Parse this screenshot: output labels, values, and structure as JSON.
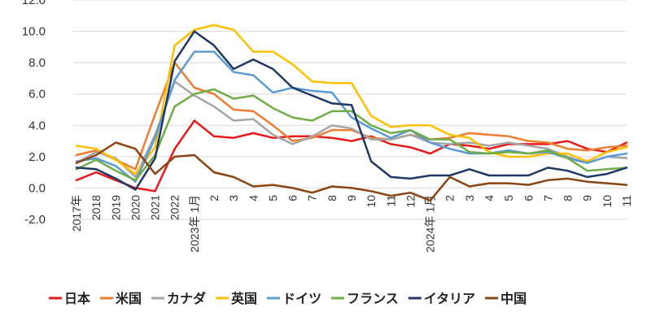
{
  "chart_data": {
    "type": "line",
    "title": "",
    "xlabel": "",
    "ylabel": "",
    "ylim": [
      -2.0,
      12.0
    ],
    "yticks": [
      "-2.0",
      "0.0",
      "2.0",
      "4.0",
      "6.0",
      "8.0",
      "10.0",
      "12.0"
    ],
    "grid": true,
    "legend": "bottom",
    "categories": [
      "2017年",
      "2018",
      "2019",
      "2020",
      "2021",
      "2022",
      "2023年 1月",
      "2",
      "3",
      "4",
      "5",
      "6",
      "7",
      "8",
      "9",
      "10",
      "11",
      "12",
      "2024年 1月",
      "2",
      "3",
      "4",
      "5",
      "6",
      "7",
      "8",
      "9",
      "10",
      "11"
    ],
    "series": [
      {
        "name": "日本",
        "color": "#e8191b",
        "values": [
          0.5,
          1.0,
          0.5,
          0.0,
          -0.2,
          2.5,
          4.3,
          3.3,
          3.2,
          3.5,
          3.2,
          3.3,
          3.3,
          3.2,
          3.0,
          3.3,
          2.8,
          2.6,
          2.2,
          2.8,
          2.7,
          2.5,
          2.8,
          2.8,
          2.8,
          3.0,
          2.5,
          2.3,
          2.9
        ]
      },
      {
        "name": "米国",
        "color": "#ed7d31",
        "values": [
          2.1,
          2.4,
          1.8,
          1.2,
          4.7,
          8.0,
          6.4,
          6.0,
          5.0,
          4.9,
          4.0,
          3.0,
          3.2,
          3.7,
          3.7,
          3.2,
          3.1,
          3.4,
          3.1,
          3.2,
          3.5,
          3.4,
          3.3,
          3.0,
          2.9,
          2.5,
          2.4,
          2.6,
          2.7
        ]
      },
      {
        "name": "カナダ",
        "color": "#a5a5a5",
        "values": [
          1.6,
          2.3,
          1.9,
          0.7,
          3.4,
          6.8,
          5.9,
          5.2,
          4.3,
          4.4,
          3.4,
          2.8,
          3.3,
          4.0,
          3.8,
          3.1,
          3.1,
          3.4,
          2.9,
          2.8,
          2.9,
          2.7,
          2.9,
          2.7,
          2.5,
          2.0,
          1.6,
          2.0,
          1.9
        ]
      },
      {
        "name": "英国",
        "color": "#ffc000",
        "values": [
          2.7,
          2.5,
          1.8,
          0.9,
          2.6,
          9.1,
          10.1,
          10.4,
          10.1,
          8.7,
          8.7,
          7.9,
          6.8,
          6.7,
          6.7,
          4.6,
          3.9,
          4.0,
          4.0,
          3.4,
          3.2,
          2.3,
          2.0,
          2.0,
          2.2,
          2.2,
          1.7,
          2.3,
          2.6
        ]
      },
      {
        "name": "ドイツ",
        "color": "#5b9bd5",
        "values": [
          1.7,
          1.9,
          1.4,
          0.4,
          3.2,
          6.9,
          8.7,
          8.7,
          7.4,
          7.2,
          6.1,
          6.4,
          6.2,
          6.1,
          4.5,
          3.8,
          3.2,
          3.7,
          2.9,
          2.5,
          2.2,
          2.2,
          2.4,
          2.2,
          2.3,
          1.9,
          1.6,
          2.0,
          2.2
        ]
      },
      {
        "name": "フランス",
        "color": "#70ad47",
        "values": [
          1.2,
          1.8,
          1.1,
          0.5,
          2.1,
          5.2,
          6.0,
          6.3,
          5.7,
          5.9,
          5.1,
          4.5,
          4.3,
          4.9,
          4.9,
          4.0,
          3.5,
          3.7,
          3.1,
          3.1,
          2.3,
          2.2,
          2.3,
          2.2,
          2.4,
          1.9,
          1.1,
          1.2,
          1.3
        ]
      },
      {
        "name": "イタリア",
        "color": "#203864",
        "values": [
          1.3,
          1.2,
          0.6,
          -0.1,
          1.9,
          8.1,
          10.0,
          9.1,
          7.6,
          8.2,
          7.6,
          6.4,
          5.9,
          5.4,
          5.3,
          1.7,
          0.7,
          0.6,
          0.8,
          0.8,
          1.2,
          0.8,
          0.8,
          0.8,
          1.3,
          1.1,
          0.7,
          0.9,
          1.3
        ]
      },
      {
        "name": "中国",
        "color": "#8b4513",
        "values": [
          1.6,
          2.1,
          2.9,
          2.5,
          0.9,
          2.0,
          2.1,
          1.0,
          0.7,
          0.1,
          0.2,
          0.0,
          -0.3,
          0.1,
          0.0,
          -0.2,
          -0.5,
          -0.3,
          -0.8,
          0.7,
          0.1,
          0.3,
          0.3,
          0.2,
          0.5,
          0.6,
          0.4,
          0.3,
          0.2
        ]
      }
    ]
  }
}
